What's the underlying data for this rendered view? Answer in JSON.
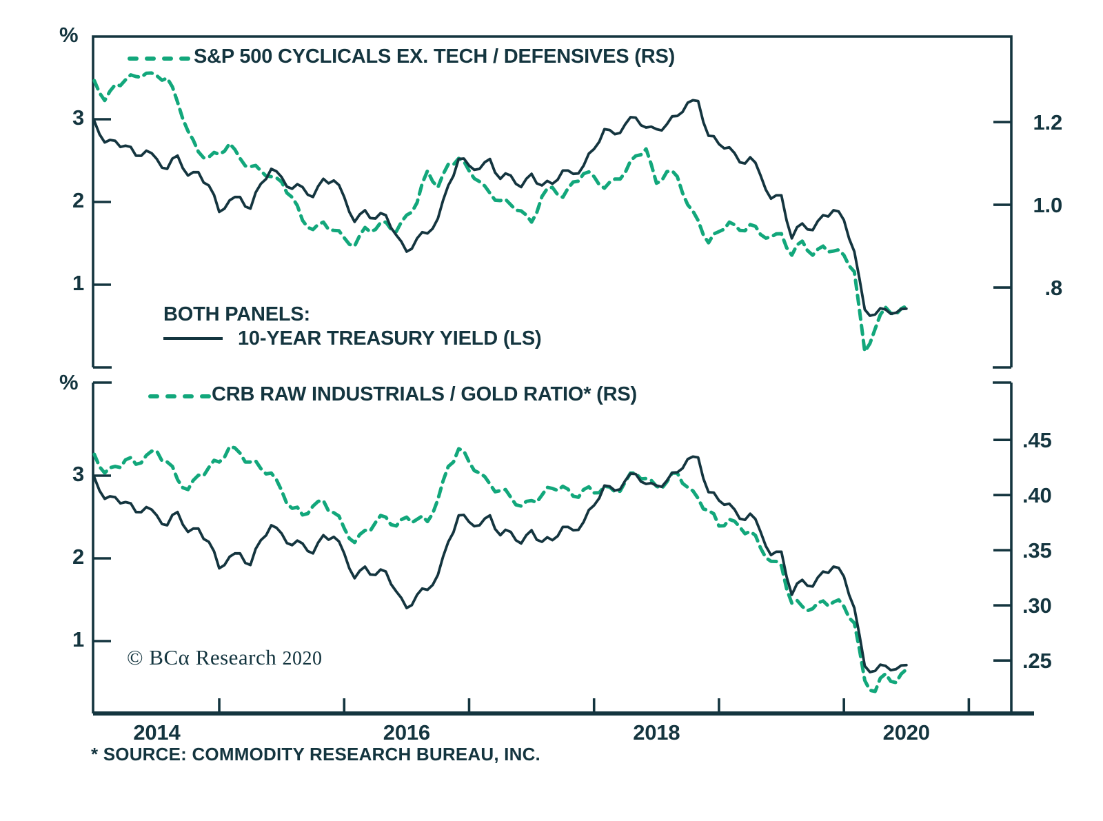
{
  "colors": {
    "background": "#ffffff",
    "axis": "#14353f",
    "text": "#14353f",
    "treasury_line": "#14353f",
    "green_line": "#12a77b"
  },
  "top_panel": {
    "unit_label": "%",
    "legend_green": "S&P 500 CYCLICALS EX. TECH / DEFENSIVES (RS)",
    "legend_both_title": "BOTH PANELS:",
    "legend_treasury": "10-YEAR TREASURY YIELD (LS)"
  },
  "bottom_panel": {
    "unit_label": "%",
    "legend_green": "CRB RAW INDUSTRIALS / GOLD RATIO* (RS)"
  },
  "footer": {
    "copyright_main": "© BCα Research ",
    "copyright_year": "2020",
    "source_note": "* SOURCE: COMMODITY RESEARCH BUREAU, INC."
  },
  "chart_data": {
    "type": "line",
    "x_axis": {
      "range": [
        2013.99,
        2021.34
      ],
      "tick_years": [
        2015,
        2016,
        2017,
        2018,
        2019,
        2020,
        2021
      ],
      "year_labels": [
        {
          "text": "2014",
          "x": 2014.5
        },
        {
          "text": "2016",
          "x": 2016.5
        },
        {
          "text": "2018",
          "x": 2018.5
        },
        {
          "text": "2020",
          "x": 2020.5
        }
      ]
    },
    "panels": [
      {
        "id": "top",
        "left_range": [
          0,
          4
        ],
        "right_range": [
          0.6067,
          1.4067
        ],
        "left_ticks": [
          {
            "label": "3",
            "value": 3
          },
          {
            "label": "2",
            "value": 2
          },
          {
            "label": "1",
            "value": 1
          }
        ],
        "right_ticks": [
          {
            "label": "1.2",
            "value": 1.2
          },
          {
            "label": "1.0",
            "value": 1.0
          },
          {
            "label": ".8",
            "value": 0.8
          }
        ],
        "green_series": "cyclicals_defensives"
      },
      {
        "id": "bottom",
        "left_range": [
          0.125,
          4.125
        ],
        "right_range": [
          0.202,
          0.502
        ],
        "left_ticks": [
          {
            "label": "3",
            "value": 3
          },
          {
            "label": "2",
            "value": 2
          },
          {
            "label": "1",
            "value": 1
          }
        ],
        "right_ticks": [
          {
            "label": ".45",
            "value": 0.45
          },
          {
            "label": ".40",
            "value": 0.4
          },
          {
            "label": ".35",
            "value": 0.35
          },
          {
            "label": ".30",
            "value": 0.3
          },
          {
            "label": ".25",
            "value": 0.25
          }
        ],
        "green_series": "crb_gold_ratio"
      }
    ],
    "series": {
      "treasury_yield": {
        "name": "10-YEAR TREASURY YIELD (LS)",
        "axis": "left",
        "x_start": 2014.0,
        "x_step": 0.0833333,
        "render_jitter": 0.045,
        "values": [
          2.98,
          2.72,
          2.74,
          2.68,
          2.56,
          2.62,
          2.52,
          2.4,
          2.56,
          2.32,
          2.36,
          2.2,
          1.88,
          2.02,
          2.06,
          1.92,
          2.22,
          2.4,
          2.3,
          2.16,
          2.18,
          2.06,
          2.28,
          2.26,
          2.06,
          1.76,
          1.9,
          1.8,
          1.84,
          1.6,
          1.4,
          1.56,
          1.62,
          1.8,
          2.2,
          2.52,
          2.44,
          2.4,
          2.52,
          2.28,
          2.32,
          2.18,
          2.34,
          2.2,
          2.22,
          2.38,
          2.34,
          2.44,
          2.64,
          2.88,
          2.82,
          2.94,
          3.02,
          2.9,
          2.88,
          2.94,
          3.04,
          3.2,
          3.22,
          2.8,
          2.7,
          2.66,
          2.48,
          2.54,
          2.32,
          2.04,
          2.08,
          1.56,
          1.74,
          1.66,
          1.84,
          1.9,
          1.78,
          1.4,
          0.7,
          0.64,
          0.7,
          0.66,
          0.71
        ]
      },
      "cyclicals_defensives": {
        "name": "S&P 500 CYCLICALS EX. TECH / DEFENSIVES (RS)",
        "axis": "right",
        "panel": "top",
        "x_start": 2014.0,
        "x_step": 0.0833333,
        "render_jitter": 0.008,
        "values": [
          1.3,
          1.252,
          1.29,
          1.302,
          1.31,
          1.318,
          1.312,
          1.306,
          1.248,
          1.178,
          1.128,
          1.115,
          1.122,
          1.148,
          1.112,
          1.092,
          1.082,
          1.068,
          1.055,
          1.018,
          0.962,
          0.94,
          0.958,
          0.938,
          0.92,
          0.9,
          0.945,
          0.94,
          0.958,
          0.935,
          0.975,
          1.005,
          1.082,
          1.042,
          1.098,
          1.112,
          1.082,
          1.056,
          1.028,
          1.01,
          1.0,
          0.985,
          0.958,
          1.02,
          1.042,
          1.018,
          1.055,
          1.075,
          1.068,
          1.04,
          1.062,
          1.078,
          1.118,
          1.135,
          1.052,
          1.08,
          1.068,
          1.0,
          0.962,
          0.908,
          0.935,
          0.958,
          0.938,
          0.952,
          0.928,
          0.922,
          0.93,
          0.878,
          0.912,
          0.878,
          0.9,
          0.888,
          0.878,
          0.838,
          0.645,
          0.7,
          0.752,
          0.735,
          0.755
        ]
      },
      "crb_gold_ratio": {
        "name": "CRB RAW INDUSTRIALS / GOLD RATIO* (RS)",
        "axis": "right",
        "panel": "bottom",
        "x_start": 2014.0,
        "x_step": 0.0833333,
        "render_jitter": 0.004,
        "values": [
          0.437,
          0.42,
          0.426,
          0.432,
          0.428,
          0.436,
          0.44,
          0.43,
          0.414,
          0.405,
          0.418,
          0.425,
          0.43,
          0.444,
          0.438,
          0.43,
          0.424,
          0.42,
          0.404,
          0.388,
          0.382,
          0.39,
          0.395,
          0.384,
          0.37,
          0.357,
          0.368,
          0.375,
          0.38,
          0.372,
          0.38,
          0.378,
          0.376,
          0.396,
          0.426,
          0.442,
          0.43,
          0.42,
          0.41,
          0.404,
          0.398,
          0.39,
          0.395,
          0.4,
          0.406,
          0.408,
          0.399,
          0.405,
          0.402,
          0.408,
          0.403,
          0.412,
          0.42,
          0.415,
          0.408,
          0.412,
          0.42,
          0.407,
          0.397,
          0.386,
          0.372,
          0.378,
          0.371,
          0.367,
          0.352,
          0.34,
          0.336,
          0.302,
          0.299,
          0.297,
          0.304,
          0.303,
          0.299,
          0.284,
          0.232,
          0.222,
          0.238,
          0.23,
          0.242
        ]
      }
    },
    "legend_position": "inside-top-left",
    "grid": false
  }
}
